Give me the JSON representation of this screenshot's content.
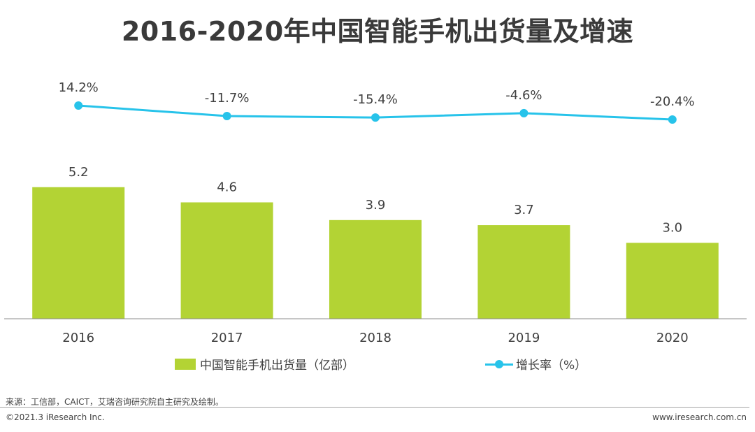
{
  "chart_data": {
    "type": "bar",
    "title": "2016-2020年中国智能手机出货量及增速",
    "categories": [
      "2016",
      "2017",
      "2018",
      "2019",
      "2020"
    ],
    "series": [
      {
        "name": "中国智能手机出货量（亿部）",
        "type": "bar",
        "values": [
          5.2,
          4.6,
          3.9,
          3.7,
          3.0
        ],
        "labels": [
          "5.2",
          "4.6",
          "3.9",
          "3.7",
          "3.0"
        ],
        "color": "#b3d334"
      },
      {
        "name": "增长率（%）",
        "type": "line",
        "values": [
          14.2,
          -11.7,
          -15.4,
          -4.6,
          -20.4
        ],
        "labels": [
          "14.2%",
          "-11.7%",
          "-15.4%",
          "-4.6%",
          "-20.4%"
        ],
        "color": "#27c3ea"
      }
    ],
    "xlabel": "",
    "ylabel": "",
    "bar_ylim": [
      0,
      6
    ],
    "line_ylim": [
      -100,
      60
    ],
    "grid": false,
    "legend_position": "bottom"
  },
  "legend": {
    "bar_label": "中国智能手机出货量（亿部）",
    "line_label": "增长率（%）"
  },
  "footer": {
    "source": "来源：工信部，CAICT，艾瑞咨询研究院自主研究及绘制。",
    "copyright": "©2021.3 iResearch Inc.",
    "website": "www.iresearch.com.cn"
  }
}
